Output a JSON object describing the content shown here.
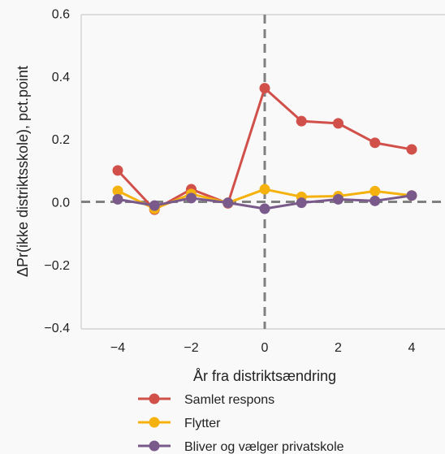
{
  "chart_data": {
    "type": "line",
    "xlabel": "År fra distriktsændring",
    "ylabel": "ΔPr(ikke distriktsskole), pct.point",
    "x": [
      -4,
      -3,
      -2,
      -1,
      0,
      1,
      2,
      3,
      4
    ],
    "xlim": [
      -5,
      5
    ],
    "ylim": [
      -0.4,
      0.6
    ],
    "xticks": [
      -4,
      -2,
      0,
      2,
      4
    ],
    "yticks": [
      -0.4,
      -0.2,
      0.0,
      0.2,
      0.4,
      0.6
    ],
    "xtick_labels": [
      "−4",
      "−2",
      "0",
      "2",
      "4"
    ],
    "ytick_labels": [
      "−0.4",
      "−0.2",
      "0.0",
      "0.2",
      "0.4",
      "0.6"
    ],
    "reference_lines": {
      "x": 0,
      "y": 0,
      "style": "dashed",
      "color": "#808080"
    },
    "grid": false,
    "legend_position": "bottom-center",
    "series": [
      {
        "name": "Samlet respons",
        "color": "#d1504a",
        "values": [
          0.1,
          -0.025,
          0.04,
          -0.005,
          0.362,
          0.257,
          0.25,
          0.188,
          0.167
        ]
      },
      {
        "name": "Flytter",
        "color": "#f5b20f",
        "values": [
          0.035,
          -0.022,
          0.025,
          -0.003,
          0.04,
          0.016,
          0.018,
          0.034,
          0.02
        ]
      },
      {
        "name": "Bliver og vælger privatskole",
        "color": "#7a5a8b",
        "values": [
          0.008,
          -0.012,
          0.012,
          -0.003,
          -0.022,
          -0.003,
          0.008,
          0.003,
          0.02
        ]
      }
    ]
  }
}
